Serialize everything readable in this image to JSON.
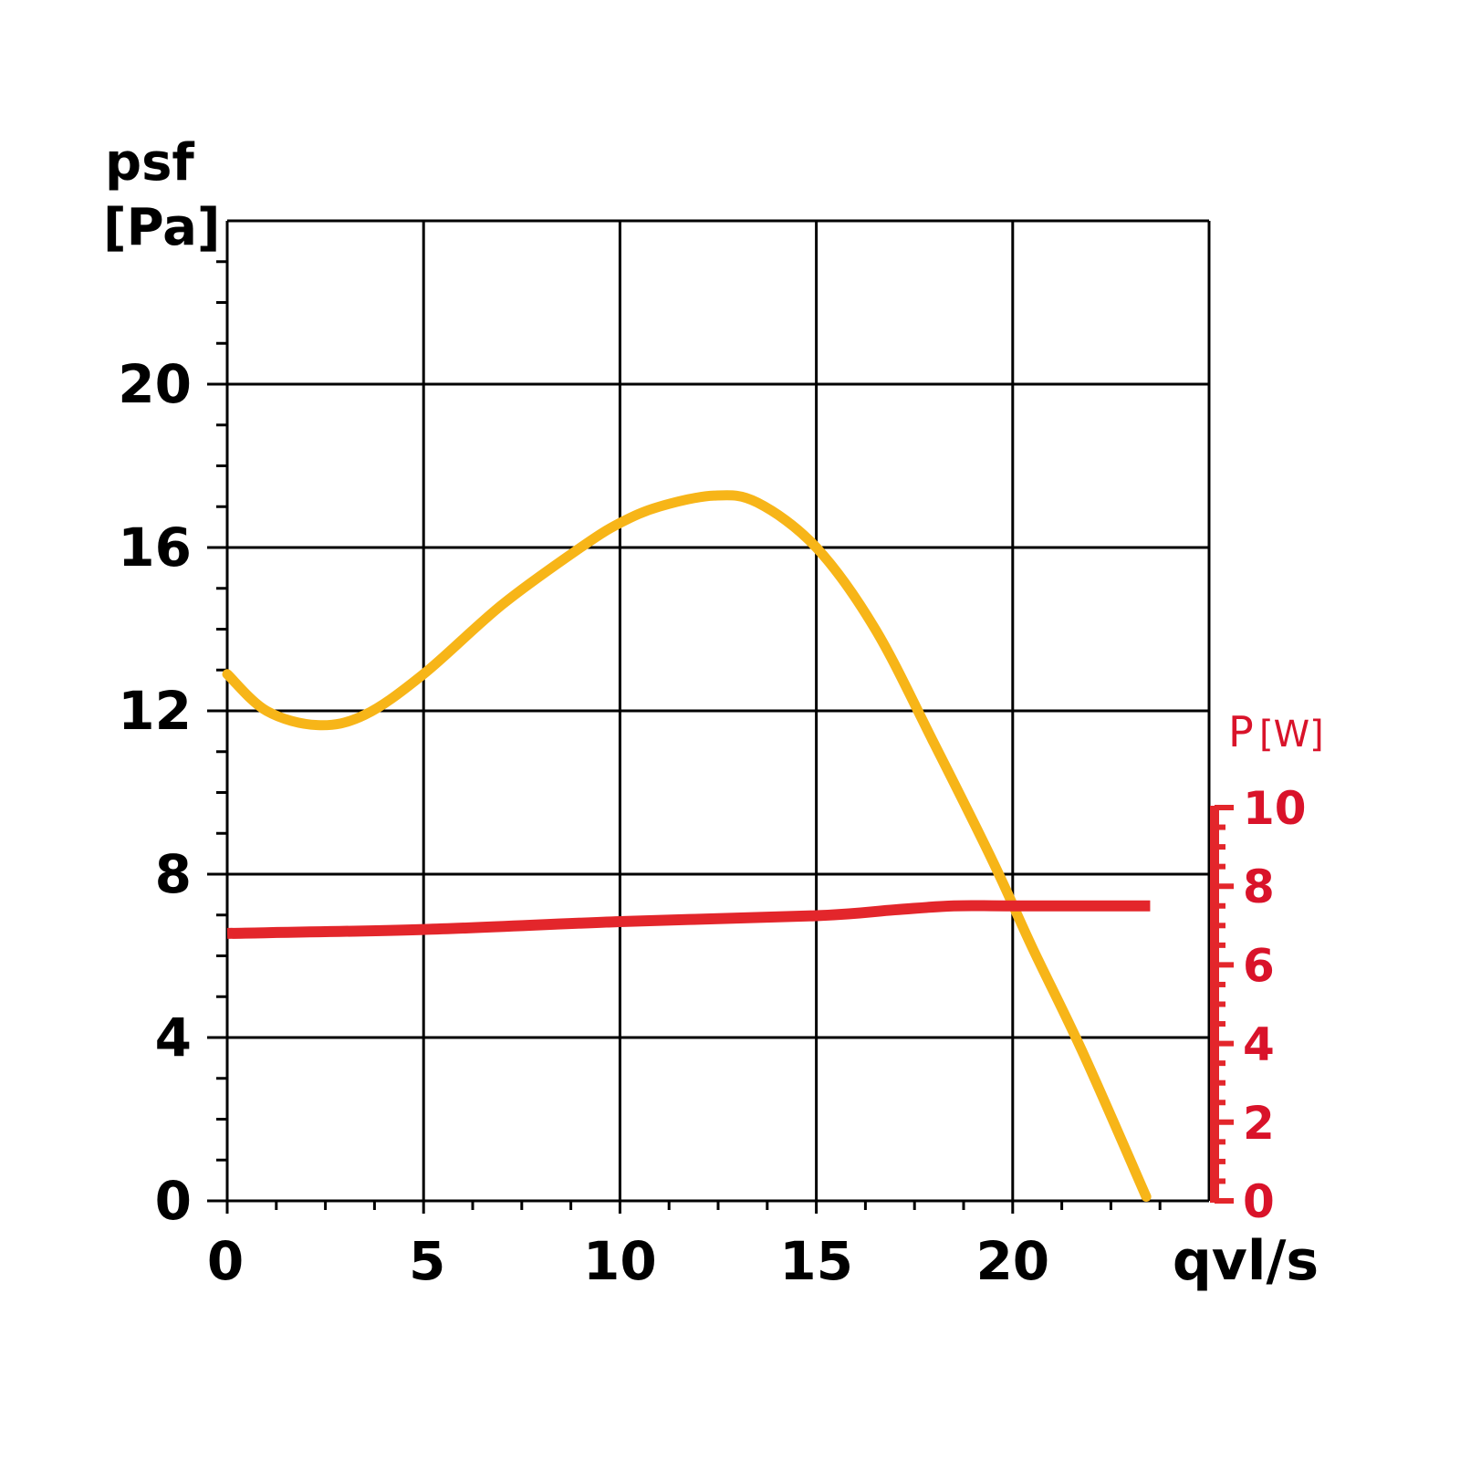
{
  "chart_data": {
    "type": "line",
    "ylabel_line1": "psf",
    "ylabel_line2": "[Pa]",
    "xlabel": "qvl/s",
    "y2label_main": "P",
    "y2label_unit": "[W]",
    "xlim": [
      0,
      25
    ],
    "ylim": [
      0,
      24
    ],
    "y2lim": [
      0,
      10
    ],
    "x_ticks": [
      "0",
      "5",
      "10",
      "15",
      "20"
    ],
    "y_ticks": [
      "0",
      "4",
      "8",
      "12",
      "16",
      "20"
    ],
    "y2_ticks": [
      "0",
      "2",
      "4",
      "6",
      "8",
      "10"
    ],
    "grid": true,
    "colors": {
      "pressure": "#f7b518",
      "power": "#e3262b",
      "power_axis": "#e3262b",
      "power_text": "#d9132a",
      "grid": "#000000"
    },
    "series": [
      {
        "axis": "left",
        "x": [
          0,
          1,
          2.3,
          3.5,
          5,
          7,
          9,
          10,
          11,
          12.4,
          13.5,
          15,
          16.5,
          18,
          19.5,
          20.5,
          21.8,
          23.4
        ],
        "y": [
          12.9,
          12.0,
          11.65,
          11.9,
          12.9,
          14.6,
          16.0,
          16.6,
          17.0,
          17.27,
          17.1,
          16.0,
          14.0,
          11.2,
          8.3,
          6.2,
          3.6,
          0.1
        ]
      },
      {
        "axis": "right",
        "x": [
          0,
          5,
          10,
          15,
          17,
          18.5,
          20,
          23.5
        ],
        "y": [
          6.8,
          6.9,
          7.1,
          7.25,
          7.4,
          7.5,
          7.5,
          7.5
        ]
      }
    ]
  }
}
